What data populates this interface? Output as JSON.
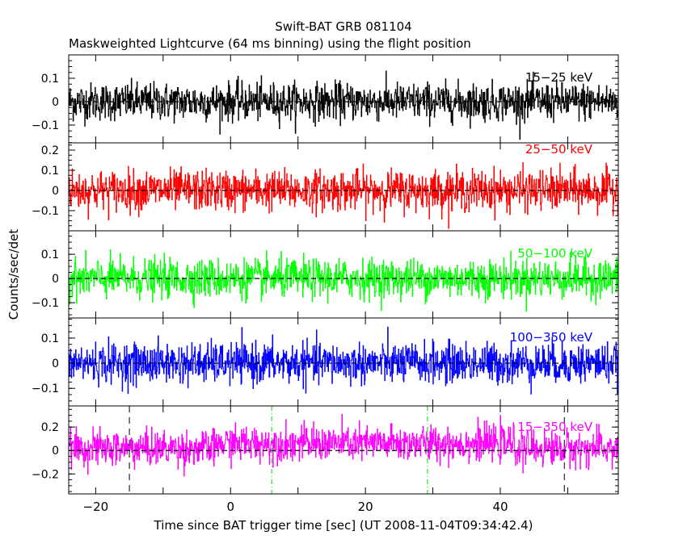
{
  "chart_data": {
    "type": "line",
    "title": "Swift-BAT GRB 081104",
    "subtitle": "Maskweighted Lightcurve (64 ms binning) using the flight position",
    "xlabel": "Time since BAT trigger time [sec] (UT 2008-11-04T09:34:42.4)",
    "ylabel": "Counts/sec/det",
    "xlim": [
      -24,
      57.5
    ],
    "x_ticks": [
      -20,
      0,
      20,
      40
    ],
    "bin_size_sec": 0.064,
    "grid": false,
    "vertical_markers": [
      {
        "x": -15,
        "style": "dashed",
        "color": "#000000"
      },
      {
        "x": 49.5,
        "style": "dashed",
        "color": "#000000"
      },
      {
        "x": 6.1,
        "style": "dash-dot",
        "color": "#00dd00"
      },
      {
        "x": 29.2,
        "style": "dash-dot",
        "color": "#00dd00"
      }
    ],
    "panels": [
      {
        "name": "15-25 keV",
        "color": "#000000",
        "ylim": [
          -0.176,
          0.2
        ],
        "y_ticks": [
          -0.1,
          0,
          0.1
        ],
        "y_tick_labels": [
          "−0.1",
          "0",
          "0.1"
        ],
        "noise_sigma": 0.04,
        "mean_level": 0
      },
      {
        "name": "25-50 keV",
        "color": "#ff0000",
        "ylim": [
          -0.2,
          0.236
        ],
        "y_ticks": [
          -0.1,
          0,
          0.1,
          0.2
        ],
        "y_tick_labels": [
          "−0.1",
          "0",
          "0.1",
          "0.2"
        ],
        "noise_sigma": 0.05,
        "mean_level": 0
      },
      {
        "name": "50-100 keV",
        "color": "#00ff00",
        "ylim": [
          -0.163,
          0.197
        ],
        "y_ticks": [
          -0.1,
          0,
          0.1
        ],
        "y_tick_labels": [
          "−0.1",
          "0",
          "0.1"
        ],
        "noise_sigma": 0.04,
        "mean_level": 0
      },
      {
        "name": "100-350 keV",
        "color": "#0000ff",
        "ylim": [
          -0.17,
          0.18
        ],
        "y_ticks": [
          -0.1,
          0,
          0.1
        ],
        "y_tick_labels": [
          "−0.1",
          "0",
          "0.1"
        ],
        "noise_sigma": 0.04,
        "mean_level": 0
      },
      {
        "name": "15-350 keV",
        "color": "#ff00ff",
        "ylim": [
          -0.37,
          0.38
        ],
        "y_ticks": [
          -0.2,
          0,
          0.2
        ],
        "y_tick_labels": [
          "−0.2",
          "0",
          "0.2"
        ],
        "noise_sigma": 0.075,
        "mean_level": 0.06
      }
    ]
  }
}
